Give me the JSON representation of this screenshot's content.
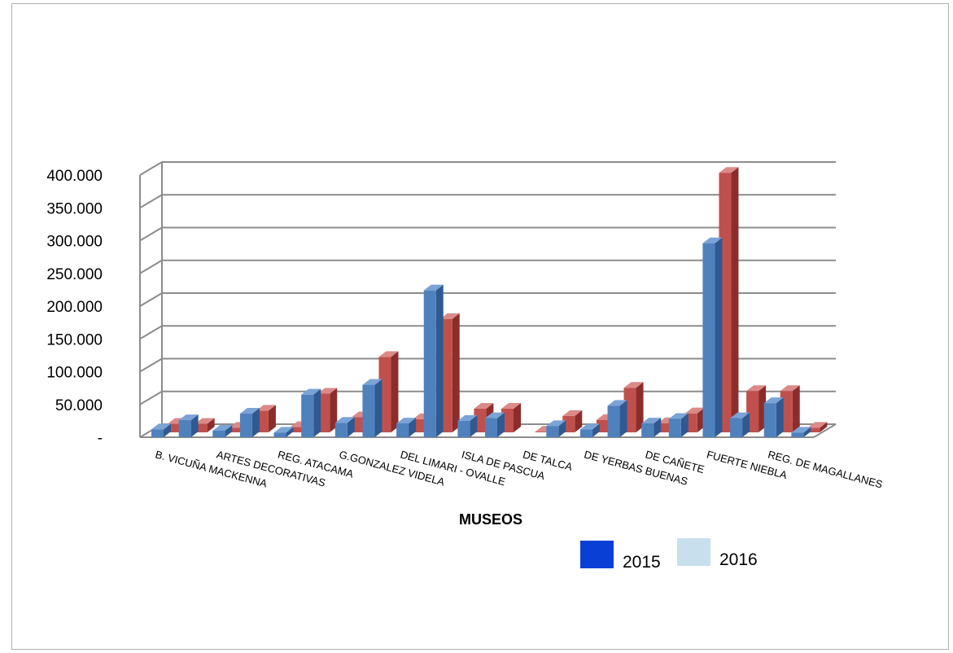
{
  "chart_data": {
    "type": "bar",
    "title": "",
    "xlabel": "MUSEOS",
    "ylabel": "",
    "ylim": [
      0,
      400000
    ],
    "yticks": [
      {
        "value": 0,
        "label": "-"
      },
      {
        "value": 50000,
        "label": "50.000"
      },
      {
        "value": 100000,
        "label": "100.000"
      },
      {
        "value": 150000,
        "label": "150.000"
      },
      {
        "value": 200000,
        "label": "200.000"
      },
      {
        "value": 250000,
        "label": "250.000"
      },
      {
        "value": 300000,
        "label": "300.000"
      },
      {
        "value": 350000,
        "label": "350.000"
      },
      {
        "value": 400000,
        "label": "400.000"
      }
    ],
    "grid": true,
    "legend_position": "bottom-right",
    "category_count": 22,
    "labeled_categories": [
      {
        "index": 0,
        "label": "B. VICUÑA MACKENNA"
      },
      {
        "index": 2,
        "label": "ARTES DECORATIVAS"
      },
      {
        "index": 4,
        "label": "REG. ATACAMA"
      },
      {
        "index": 6,
        "label": "G.GONZALEZ VIDELA"
      },
      {
        "index": 8,
        "label": "DEL LIMARI - OVALLE"
      },
      {
        "index": 10,
        "label": "ISLA DE PASCUA"
      },
      {
        "index": 12,
        "label": "DE TALCA"
      },
      {
        "index": 14,
        "label": "DE YERBAS BUENAS"
      },
      {
        "index": 16,
        "label": "DE CAÑETE"
      },
      {
        "index": 18,
        "label": "FUERTE NIEBLA"
      },
      {
        "index": 20,
        "label": "REG. DE MAGALLANES"
      }
    ],
    "series": [
      {
        "name": "2015",
        "values": [
          12000,
          26000,
          10000,
          36000,
          7000,
          65000,
          22000,
          80000,
          21000,
          224000,
          25000,
          29000,
          0,
          17000,
          12000,
          48000,
          21000,
          28000,
          296000,
          29000,
          52000,
          7000
        ]
      },
      {
        "name": "2016",
        "values": [
          13000,
          13000,
          7000,
          33000,
          8000,
          59000,
          23000,
          115000,
          20000,
          173000,
          36000,
          36000,
          1000,
          25000,
          19000,
          68000,
          14000,
          29000,
          396000,
          63000,
          63000,
          7000
        ]
      }
    ],
    "bar_colors": {
      "2015_face": "#4f81bd",
      "2015_side": "#2f5a91",
      "2015_top": "#7aa3d6",
      "2016_face": "#c0504d",
      "2016_side": "#8c2d2b",
      "2016_top": "#db8a88"
    },
    "legend_swatch_colors": {
      "2015": "#0a3fd6",
      "2016": "#c8e0ee"
    },
    "grid_color": "#8c8c8c"
  }
}
